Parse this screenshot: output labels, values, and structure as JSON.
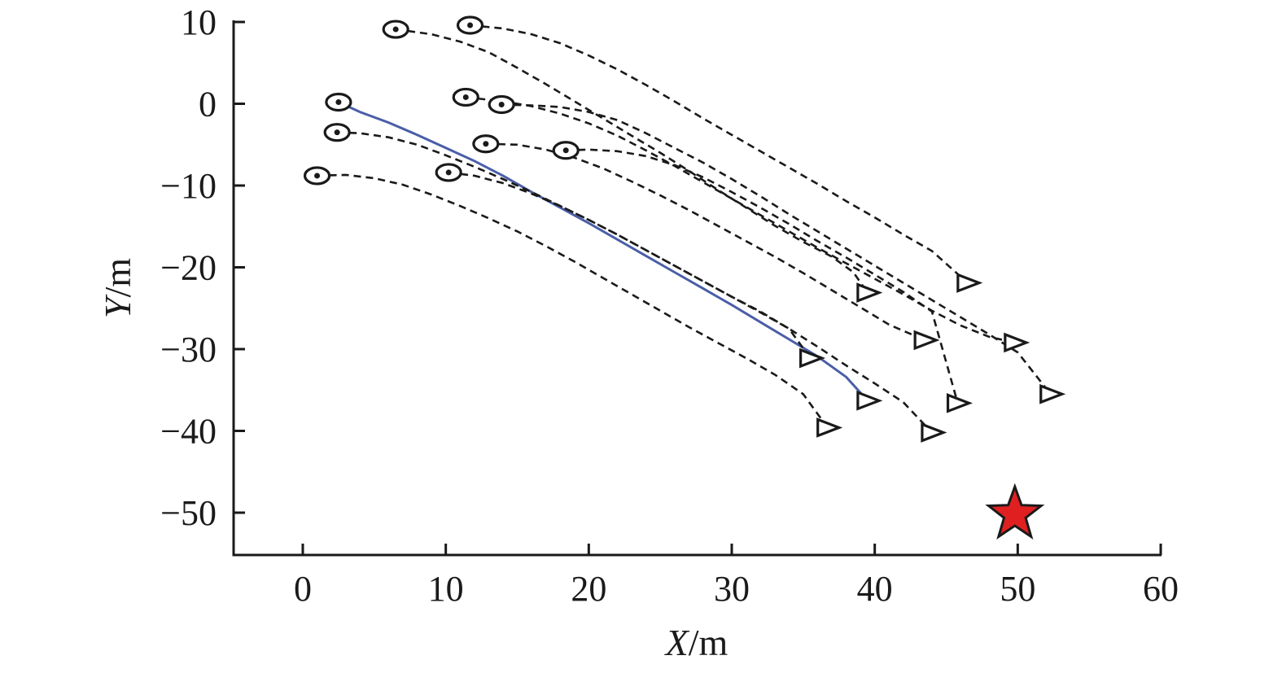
{
  "chart_data": {
    "type": "line",
    "xlabel": {
      "italic": "X",
      "unit": "/m"
    },
    "ylabel": {
      "italic": "Y",
      "unit": "/m"
    },
    "xlim": [
      -5,
      60
    ],
    "ylim": [
      -55,
      10
    ],
    "x_ticks": [
      0,
      10,
      20,
      30,
      40,
      50,
      60
    ],
    "y_ticks": [
      10,
      0,
      -10,
      -20,
      -30,
      -40,
      -50
    ],
    "x_tick_labels": [
      "0",
      "10",
      "20",
      "30",
      "40",
      "50",
      "60"
    ],
    "y_tick_labels": [
      "10",
      "0",
      "−10",
      "−20",
      "−30",
      "−40",
      "−50"
    ],
    "grid": false,
    "legend": "none",
    "colors": {
      "dashed": "#1a1a1a",
      "highlight": "#4a5ea8",
      "target": "#e02020"
    },
    "target": {
      "x": 49.8,
      "y": -50.2
    },
    "series": [
      {
        "style": "solid",
        "points": [
          [
            2.5,
            0.2
          ],
          [
            4,
            -1
          ],
          [
            6,
            -2.3
          ],
          [
            8,
            -3.8
          ],
          [
            10,
            -5.4
          ],
          [
            12,
            -7
          ],
          [
            14,
            -8.8
          ],
          [
            16,
            -10.8
          ],
          [
            18,
            -12.7
          ],
          [
            20,
            -14.6
          ],
          [
            22,
            -16.6
          ],
          [
            24,
            -18.6
          ],
          [
            26,
            -20.6
          ],
          [
            28,
            -22.6
          ],
          [
            30,
            -24.6
          ],
          [
            32,
            -26.7
          ],
          [
            34,
            -28.8
          ],
          [
            36,
            -30.9
          ],
          [
            38,
            -33.4
          ],
          [
            39.5,
            -36.3
          ]
        ],
        "end_marker": [
          39.5,
          -36.3
        ]
      },
      {
        "style": "dashed",
        "points": [
          [
            6.5,
            9.1
          ],
          [
            9,
            8.5
          ],
          [
            11,
            7.6
          ],
          [
            13,
            6.3
          ],
          [
            15,
            4.4
          ],
          [
            17,
            2.4
          ],
          [
            19,
            0.3
          ],
          [
            21,
            -1.8
          ],
          [
            23,
            -3.9
          ],
          [
            25,
            -6
          ],
          [
            27,
            -8.2
          ],
          [
            29,
            -10.5
          ],
          [
            31,
            -12.7
          ],
          [
            33,
            -14.9
          ],
          [
            35,
            -16.9
          ],
          [
            37,
            -18.7
          ],
          [
            38.5,
            -20.6
          ],
          [
            39.5,
            -23.1
          ]
        ],
        "end_marker": [
          39.5,
          -23.1
        ]
      },
      {
        "style": "dashed",
        "points": [
          [
            11.7,
            9.6
          ],
          [
            14,
            9.2
          ],
          [
            16,
            8.5
          ],
          [
            18,
            7.4
          ],
          [
            20,
            5.9
          ],
          [
            22,
            4.2
          ],
          [
            24,
            2.3
          ],
          [
            26,
            0.3
          ],
          [
            28,
            -1.8
          ],
          [
            30,
            -3.8
          ],
          [
            32,
            -5.8
          ],
          [
            34,
            -7.8
          ],
          [
            36,
            -9.8
          ],
          [
            38,
            -11.9
          ],
          [
            40,
            -13.9
          ],
          [
            42,
            -16
          ],
          [
            44,
            -18
          ],
          [
            46.5,
            -21.9
          ]
        ],
        "end_marker": [
          46.5,
          -21.9
        ]
      },
      {
        "style": "dashed",
        "points": [
          [
            11.4,
            0.8
          ],
          [
            14,
            0.3
          ],
          [
            16,
            -0.3
          ],
          [
            18,
            -1.2
          ],
          [
            20,
            -2.4
          ],
          [
            22,
            -3.9
          ],
          [
            24,
            -5.7
          ],
          [
            26,
            -7.6
          ],
          [
            28,
            -9.6
          ],
          [
            30,
            -11.6
          ],
          [
            32,
            -13.6
          ],
          [
            34,
            -15.6
          ],
          [
            36,
            -17.6
          ],
          [
            38,
            -19.5
          ],
          [
            40,
            -21.4
          ],
          [
            42,
            -23.3
          ],
          [
            44,
            -25.3
          ],
          [
            46,
            -27.1
          ],
          [
            48,
            -28.5
          ],
          [
            49.8,
            -29.2
          ]
        ],
        "end_marker": [
          49.8,
          -29.2
        ]
      },
      {
        "style": "dashed",
        "points": [
          [
            13.9,
            -0.1
          ],
          [
            16,
            -0.2
          ],
          [
            18,
            -0.4
          ],
          [
            20,
            -1
          ],
          [
            22,
            -2
          ],
          [
            24,
            -3.6
          ],
          [
            26,
            -5.4
          ],
          [
            28,
            -7.2
          ],
          [
            30,
            -9.2
          ],
          [
            32,
            -11.3
          ],
          [
            34,
            -13.5
          ],
          [
            36,
            -15.6
          ],
          [
            38,
            -17.7
          ],
          [
            40,
            -19.8
          ],
          [
            42,
            -21.9
          ],
          [
            44,
            -24
          ],
          [
            46,
            -26.1
          ],
          [
            48,
            -28.2
          ],
          [
            50,
            -30.4
          ],
          [
            52.3,
            -35.5
          ]
        ],
        "end_marker": [
          52.3,
          -35.5
        ]
      },
      {
        "style": "dashed",
        "points": [
          [
            2.4,
            -3.5
          ],
          [
            4,
            -3.6
          ],
          [
            6,
            -4.1
          ],
          [
            8,
            -5
          ],
          [
            10,
            -6.3
          ],
          [
            12,
            -7.7
          ],
          [
            14,
            -9.2
          ],
          [
            16,
            -10.8
          ],
          [
            18,
            -12.5
          ],
          [
            20,
            -14.2
          ],
          [
            22,
            -16
          ],
          [
            24,
            -17.9
          ],
          [
            26,
            -19.8
          ],
          [
            28,
            -21.7
          ],
          [
            30,
            -23.6
          ],
          [
            32,
            -25.4
          ],
          [
            34,
            -27.5
          ],
          [
            35.5,
            -31.1
          ]
        ],
        "end_marker": [
          35.5,
          -31.1
        ]
      },
      {
        "style": "dashed",
        "points": [
          [
            12.8,
            -4.9
          ],
          [
            15,
            -5
          ],
          [
            17,
            -5.6
          ],
          [
            19,
            -6.6
          ],
          [
            21,
            -7.9
          ],
          [
            23,
            -9.5
          ],
          [
            25,
            -11.2
          ],
          [
            27,
            -13
          ],
          [
            29,
            -14.9
          ],
          [
            31,
            -16.8
          ],
          [
            33,
            -18.7
          ],
          [
            35,
            -20.7
          ],
          [
            37,
            -22.8
          ],
          [
            39,
            -24.9
          ],
          [
            41,
            -27
          ],
          [
            43.5,
            -28.9
          ]
        ],
        "end_marker": [
          43.5,
          -28.9
        ]
      },
      {
        "style": "dashed",
        "points": [
          [
            18.4,
            -5.7
          ],
          [
            20,
            -5.6
          ],
          [
            22,
            -5.8
          ],
          [
            24,
            -6.4
          ],
          [
            26,
            -7.5
          ],
          [
            28,
            -9
          ],
          [
            30,
            -10.8
          ],
          [
            32,
            -12.7
          ],
          [
            34,
            -14.7
          ],
          [
            36,
            -16.8
          ],
          [
            38,
            -18.8
          ],
          [
            40,
            -20.9
          ],
          [
            42,
            -23
          ],
          [
            44,
            -25.4
          ],
          [
            45.8,
            -36.6
          ]
        ],
        "end_marker": [
          45.8,
          -36.6
        ]
      },
      {
        "style": "dashed",
        "points": [
          [
            1,
            -8.8
          ],
          [
            3,
            -8.7
          ],
          [
            5,
            -9.1
          ],
          [
            7,
            -9.9
          ],
          [
            9,
            -11.1
          ],
          [
            11,
            -12.5
          ],
          [
            13,
            -14
          ],
          [
            15,
            -15.6
          ],
          [
            17,
            -17.4
          ],
          [
            19,
            -19.3
          ],
          [
            21,
            -21.3
          ],
          [
            23,
            -23.3
          ],
          [
            25,
            -25.3
          ],
          [
            27,
            -27.3
          ],
          [
            29,
            -29.2
          ],
          [
            31,
            -31.1
          ],
          [
            33,
            -33.1
          ],
          [
            35,
            -35.5
          ],
          [
            36.7,
            -39.6
          ]
        ],
        "end_marker": [
          36.7,
          -39.6
        ]
      },
      {
        "style": "dashed",
        "points": [
          [
            10.2,
            -8.4
          ],
          [
            12,
            -8.8
          ],
          [
            14,
            -9.7
          ],
          [
            16,
            -11
          ],
          [
            18,
            -12.5
          ],
          [
            20,
            -14.2
          ],
          [
            22,
            -16
          ],
          [
            24,
            -17.9
          ],
          [
            26,
            -19.8
          ],
          [
            28,
            -21.7
          ],
          [
            30,
            -23.6
          ],
          [
            32,
            -25.5
          ],
          [
            34,
            -27.5
          ],
          [
            36,
            -29.7
          ],
          [
            38,
            -32
          ],
          [
            40,
            -34.2
          ],
          [
            42,
            -36.5
          ],
          [
            44,
            -40.2
          ]
        ],
        "end_marker": [
          44,
          -40.2
        ]
      }
    ]
  }
}
